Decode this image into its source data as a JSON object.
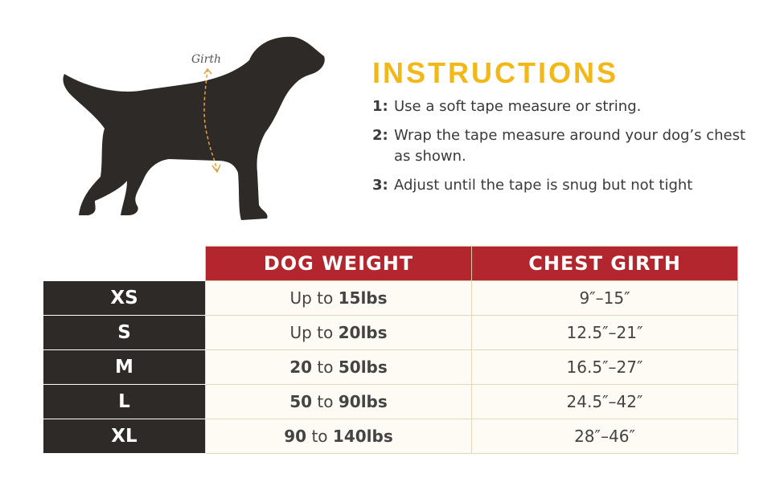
{
  "girth_label": "Girth",
  "instructions": {
    "title": "INSTRUCTIONS",
    "steps": [
      {
        "number": "1:",
        "text": "Use a soft tape measure or string."
      },
      {
        "number": "2:",
        "text": "Wrap the tape measure around your dog’s chest as shown."
      },
      {
        "number": "3:",
        "text": "Adjust until the tape is snug but not tight"
      }
    ]
  },
  "table": {
    "headers": [
      "DOG WEIGHT",
      "CHEST GIRTH"
    ],
    "rows": [
      {
        "size": "XS",
        "weight": [
          "Up to",
          "15lbs"
        ],
        "girth": "9″–15″"
      },
      {
        "size": "S",
        "weight": [
          "Up to",
          "20lbs"
        ],
        "girth": "12.5″–21″"
      },
      {
        "size": "M",
        "weight": [
          "20",
          "to",
          "50lbs"
        ],
        "girth": "16.5″–27″"
      },
      {
        "size": "L",
        "weight": [
          "50",
          "to",
          "90lbs"
        ],
        "girth": "24.5″–42″"
      },
      {
        "size": "XL",
        "weight": [
          "90",
          "to",
          "140lbs"
        ],
        "girth": "28″–46″"
      }
    ]
  }
}
